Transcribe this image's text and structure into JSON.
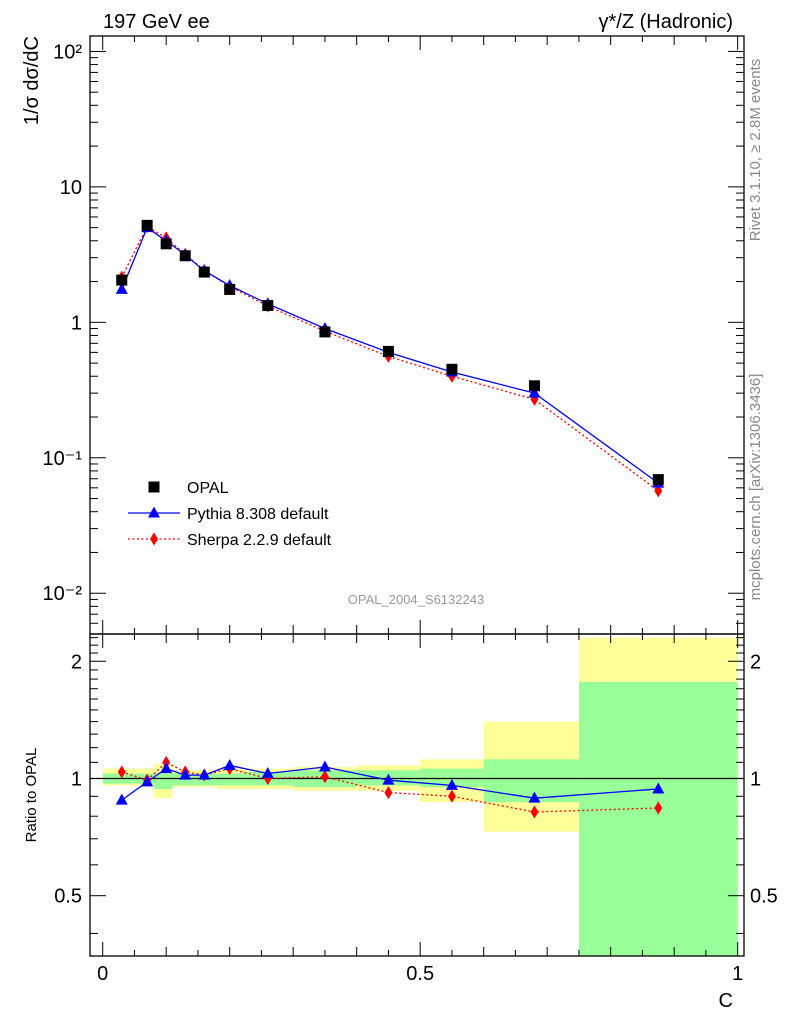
{
  "header": {
    "left": "197 GeV ee",
    "right": "γ*/Z (Hadronic)"
  },
  "side": {
    "rivet": "Rivet 3.1.10, ≥ 2.8M events",
    "mcplots": "mcplots.cern.ch [arXiv:1306.3436]"
  },
  "analysis_id": "OPAL_2004_S6132243",
  "chart_data": [
    {
      "type": "scatter",
      "scale": "log",
      "ylabel": "1/σ dσ/dC",
      "xlim": [
        -0.02,
        1.01
      ],
      "ylim": [
        0.005,
        130
      ],
      "y_ticks": [
        "10⁻²",
        "10⁻¹",
        "1",
        "10",
        "10²"
      ],
      "legend": {
        "position": "bottom-left",
        "entries": [
          "OPAL",
          "Pythia 8.308 default",
          "Sherpa 2.2.9 default"
        ]
      },
      "series": [
        {
          "name": "OPAL",
          "color": "#000000",
          "marker": "square",
          "x": [
            0.03,
            0.07,
            0.1,
            0.13,
            0.16,
            0.2,
            0.26,
            0.35,
            0.45,
            0.55,
            0.68,
            0.875
          ],
          "y": [
            2.05,
            5.2,
            3.8,
            3.1,
            2.35,
            1.75,
            1.33,
            0.85,
            0.61,
            0.45,
            0.34,
            0.069
          ]
        },
        {
          "name": "Pythia 8.308 default",
          "color": "#0000ff",
          "marker": "triangle",
          "x": [
            0.03,
            0.07,
            0.1,
            0.13,
            0.16,
            0.2,
            0.26,
            0.35,
            0.45,
            0.55,
            0.68,
            0.875
          ],
          "y": [
            1.75,
            5.0,
            4.0,
            3.15,
            2.4,
            1.87,
            1.37,
            0.9,
            0.6,
            0.43,
            0.3,
            0.065
          ]
        },
        {
          "name": "Sherpa 2.2.9 default",
          "color": "#ff0000",
          "marker": "diamond",
          "x": [
            0.03,
            0.07,
            0.1,
            0.13,
            0.16,
            0.2,
            0.26,
            0.35,
            0.45,
            0.55,
            0.68,
            0.875
          ],
          "y": [
            2.15,
            5.1,
            4.2,
            3.18,
            2.42,
            1.84,
            1.32,
            0.86,
            0.56,
            0.4,
            0.27,
            0.057
          ]
        }
      ]
    },
    {
      "type": "scatter",
      "scale": "log",
      "xlabel": "C",
      "ylabel": "Ratio to OPAL",
      "xlim": [
        -0.02,
        1.01
      ],
      "ylim": [
        0.35,
        2.35
      ],
      "x_ticks": [
        0,
        0.5,
        1
      ],
      "y_ticks": [
        0.5,
        1,
        2
      ],
      "bands": {
        "edges": [
          0,
          0.05,
          0.08,
          0.11,
          0.14,
          0.18,
          0.22,
          0.3,
          0.4,
          0.5,
          0.6,
          0.75,
          1.0
        ],
        "yellow_low": [
          0.96,
          0.96,
          0.89,
          0.95,
          0.95,
          0.94,
          0.94,
          0.93,
          0.93,
          0.87,
          0.73,
          0.35
        ],
        "yellow_high": [
          1.06,
          1.06,
          1.09,
          1.05,
          1.05,
          1.06,
          1.06,
          1.07,
          1.08,
          1.12,
          1.4,
          2.3
        ],
        "green_low": [
          0.97,
          0.97,
          0.94,
          0.96,
          0.96,
          0.96,
          0.96,
          0.95,
          0.96,
          0.95,
          0.87,
          0.35
        ],
        "green_high": [
          1.03,
          1.03,
          1.03,
          1.03,
          1.03,
          1.03,
          1.04,
          1.05,
          1.05,
          1.06,
          1.12,
          1.77
        ]
      },
      "series": [
        {
          "name": "Pythia 8.308 default",
          "color": "#0000ff",
          "marker": "triangle",
          "x": [
            0.03,
            0.07,
            0.1,
            0.13,
            0.16,
            0.2,
            0.26,
            0.35,
            0.45,
            0.55,
            0.68,
            0.875
          ],
          "y": [
            0.88,
            0.98,
            1.06,
            1.02,
            1.02,
            1.08,
            1.03,
            1.07,
            0.99,
            0.96,
            0.89,
            0.94
          ]
        },
        {
          "name": "Sherpa 2.2.9 default",
          "color": "#ff0000",
          "marker": "diamond",
          "x": [
            0.03,
            0.07,
            0.1,
            0.13,
            0.16,
            0.2,
            0.26,
            0.35,
            0.45,
            0.55,
            0.68,
            0.875
          ],
          "y": [
            1.04,
            0.99,
            1.1,
            1.04,
            1.02,
            1.06,
            1.0,
            1.01,
            0.92,
            0.9,
            0.82,
            0.84
          ]
        }
      ]
    }
  ]
}
